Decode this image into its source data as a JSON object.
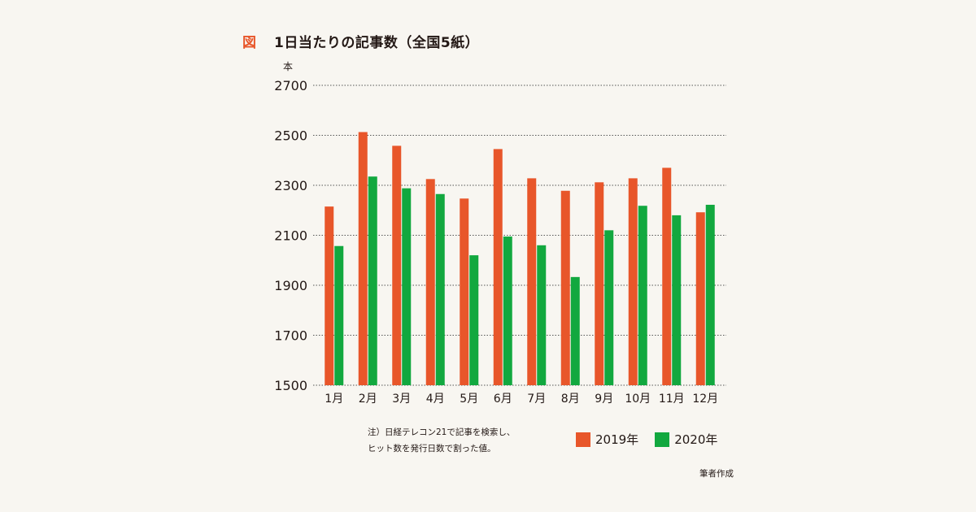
{
  "figure": {
    "label": "図",
    "title": "1日当たりの記事数（全国5紙）",
    "note_lines": [
      "注）日経テレコン21で記事を検索し、",
      "ヒット数を発行日数で割った値。"
    ],
    "credit": "筆者作成"
  },
  "colors": {
    "label_accent": "#e8562a",
    "series_2019": "#e8562a",
    "series_2020": "#12a83f",
    "grid": "#555555"
  },
  "chart_data": {
    "type": "bar",
    "title": "1日当たりの記事数（全国5紙）",
    "ylabel": "本",
    "xlabel": "",
    "ylim": [
      1500,
      2700
    ],
    "yticks": [
      1500,
      1700,
      1900,
      2100,
      2300,
      2500,
      2700
    ],
    "grid": true,
    "legend_position": "bottom-right",
    "categories": [
      "1月",
      "2月",
      "3月",
      "4月",
      "5月",
      "6月",
      "7月",
      "8月",
      "9月",
      "10月",
      "11月",
      "12月"
    ],
    "series": [
      {
        "name": "2019年",
        "values": [
          2215,
          2513,
          2458,
          2325,
          2247,
          2445,
          2328,
          2278,
          2312,
          2328,
          2370,
          2192
        ]
      },
      {
        "name": "2020年",
        "values": [
          2057,
          2335,
          2288,
          2265,
          2020,
          2095,
          2060,
          1933,
          2120,
          2218,
          2180,
          2222
        ]
      }
    ]
  }
}
